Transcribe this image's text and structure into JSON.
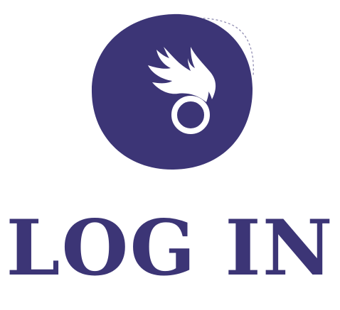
{
  "login": {
    "title": "LOG IN"
  },
  "colors": {
    "brand": "#3c3576",
    "background": "#ffffff",
    "icon_fill": "#ffffff"
  },
  "icons": {
    "logo": "winged-ring-icon"
  }
}
